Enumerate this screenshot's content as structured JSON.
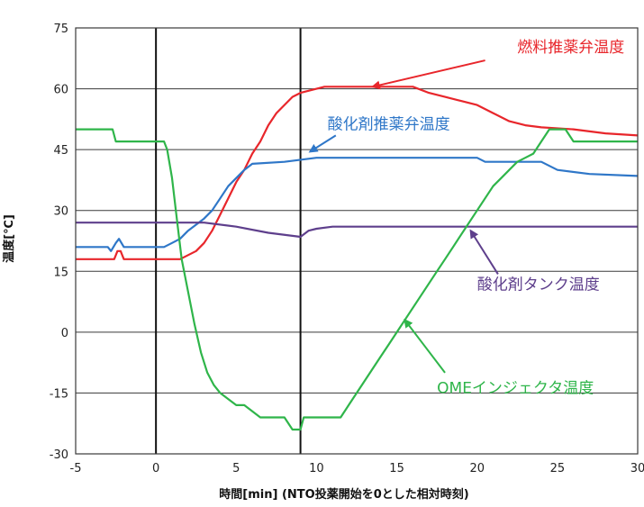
{
  "chart_data": {
    "type": "line",
    "xlabel": "時間[min] (NTO投薬開始を0とした相対時刻)",
    "ylabel": "温度[℃]",
    "xlim": [
      -5,
      30
    ],
    "ylim": [
      -30,
      75
    ],
    "xticks": [
      -5,
      0,
      5,
      10,
      15,
      20,
      25,
      30
    ],
    "yticks": [
      -30,
      -15,
      0,
      15,
      30,
      45,
      60,
      75
    ],
    "grid": "horizontal",
    "vertical_markers": [
      0,
      9
    ],
    "series": [
      {
        "name": "燃料推薬弁温度",
        "color": "#e8262b",
        "points": [
          [
            -5,
            18
          ],
          [
            -2.6,
            18
          ],
          [
            -2.4,
            20
          ],
          [
            -2.2,
            20
          ],
          [
            -2,
            18
          ],
          [
            1.5,
            18
          ],
          [
            2,
            19
          ],
          [
            2.5,
            20
          ],
          [
            3,
            22
          ],
          [
            3.5,
            25
          ],
          [
            4,
            29
          ],
          [
            4.5,
            33
          ],
          [
            5,
            37
          ],
          [
            5.5,
            40
          ],
          [
            6,
            44
          ],
          [
            6.5,
            47
          ],
          [
            7,
            51
          ],
          [
            7.5,
            54
          ],
          [
            8,
            56
          ],
          [
            8.5,
            58
          ],
          [
            9,
            59
          ],
          [
            9.5,
            59.5
          ],
          [
            10,
            60
          ],
          [
            10.5,
            60.5
          ],
          [
            16,
            60.5
          ],
          [
            17,
            59
          ],
          [
            18,
            58
          ],
          [
            19,
            57
          ],
          [
            20,
            56
          ],
          [
            21,
            54
          ],
          [
            22,
            52
          ],
          [
            23,
            51
          ],
          [
            24,
            50.5
          ],
          [
            26,
            50
          ],
          [
            28,
            49
          ],
          [
            30,
            48.5
          ]
        ]
      },
      {
        "name": "酸化剤推薬弁温度",
        "color": "#2f77c8",
        "points": [
          [
            -5,
            21
          ],
          [
            -3,
            21
          ],
          [
            -2.8,
            20
          ],
          [
            -2.5,
            22
          ],
          [
            -2.3,
            23
          ],
          [
            -2,
            21
          ],
          [
            0.5,
            21
          ],
          [
            1,
            22
          ],
          [
            1.5,
            23
          ],
          [
            2,
            25
          ],
          [
            2.5,
            26.5
          ],
          [
            3,
            28
          ],
          [
            3.5,
            30
          ],
          [
            4,
            33
          ],
          [
            4.5,
            36
          ],
          [
            5,
            38
          ],
          [
            5.5,
            40
          ],
          [
            6,
            41.5
          ],
          [
            8,
            42
          ],
          [
            10,
            43
          ],
          [
            20,
            43
          ],
          [
            20.5,
            42
          ],
          [
            24,
            42
          ],
          [
            25,
            40
          ],
          [
            27,
            39
          ],
          [
            30,
            38.5
          ]
        ]
      },
      {
        "name": "酸化剤タンク温度",
        "color": "#5e3f8c",
        "points": [
          [
            -5,
            27
          ],
          [
            3,
            27
          ],
          [
            5,
            26
          ],
          [
            7,
            24.5
          ],
          [
            9,
            23.5
          ],
          [
            9.5,
            25
          ],
          [
            10,
            25.5
          ],
          [
            11,
            26
          ],
          [
            30,
            26
          ]
        ]
      },
      {
        "name": "OMEインジェクタ温度",
        "color": "#2fb54a",
        "points": [
          [
            -5,
            50
          ],
          [
            -2.7,
            50
          ],
          [
            -2.5,
            47
          ],
          [
            0.5,
            47
          ],
          [
            0.7,
            45
          ],
          [
            1,
            38
          ],
          [
            1.3,
            28
          ],
          [
            1.6,
            18
          ],
          [
            2,
            10
          ],
          [
            2.4,
            2
          ],
          [
            2.8,
            -5
          ],
          [
            3.2,
            -10
          ],
          [
            3.6,
            -13
          ],
          [
            4,
            -15
          ],
          [
            5,
            -18
          ],
          [
            5.5,
            -18
          ],
          [
            6.5,
            -21
          ],
          [
            8,
            -21
          ],
          [
            8.5,
            -24
          ],
          [
            9,
            -24
          ],
          [
            9.2,
            -21
          ],
          [
            11.5,
            -21
          ],
          [
            12,
            -18
          ],
          [
            12.5,
            -15
          ],
          [
            13,
            -12
          ],
          [
            13.5,
            -9
          ],
          [
            14,
            -6
          ],
          [
            14.5,
            -3
          ],
          [
            15,
            0
          ],
          [
            15.5,
            3
          ],
          [
            16,
            6
          ],
          [
            16.5,
            9
          ],
          [
            17,
            12
          ],
          [
            17.5,
            15
          ],
          [
            18,
            18
          ],
          [
            18.5,
            21
          ],
          [
            19,
            24
          ],
          [
            19.5,
            27
          ],
          [
            20,
            30
          ],
          [
            20.5,
            33
          ],
          [
            21,
            36
          ],
          [
            21.5,
            38
          ],
          [
            22,
            40
          ],
          [
            22.5,
            42
          ],
          [
            23,
            43
          ],
          [
            23.5,
            44
          ],
          [
            24,
            47
          ],
          [
            24.5,
            50
          ],
          [
            25.5,
            50
          ],
          [
            26,
            47
          ],
          [
            30,
            47
          ]
        ]
      }
    ]
  },
  "annotations": [
    {
      "label": "燃料推薬弁温度",
      "color": "#e8262b",
      "label_x": 22.5,
      "label_y": 69,
      "anchor": "start",
      "arrow_from": [
        20.5,
        67
      ],
      "arrow_to": [
        13.5,
        60.5
      ]
    },
    {
      "label": "酸化剤推薬弁温度",
      "color": "#2f77c8",
      "label_x": 14.5,
      "label_y": 50,
      "anchor": "middle",
      "arrow_from": [
        11.2,
        48.5
      ],
      "arrow_to": [
        9.6,
        44.5
      ]
    },
    {
      "label": "酸化剤タンク温度",
      "color": "#5e3f8c",
      "label_x": 20,
      "label_y": 10.5,
      "anchor": "start",
      "arrow_from": [
        21.3,
        14.3
      ],
      "arrow_to": [
        19.6,
        25
      ]
    },
    {
      "label": "OMEインジェクタ温度",
      "color": "#2fb54a",
      "label_x": 17.5,
      "label_y": -15,
      "anchor": "start",
      "arrow_from": [
        18,
        -10
      ],
      "arrow_to": [
        15.5,
        3
      ]
    }
  ]
}
